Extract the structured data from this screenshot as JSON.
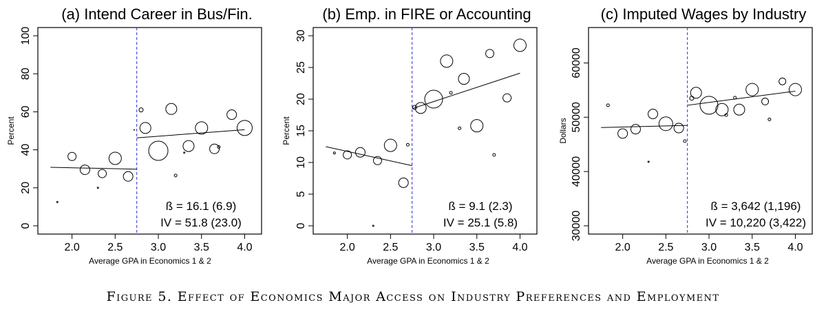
{
  "figure": {
    "caption": "Figure 5. Effect of Economics Major Access on Industry Preferences and Employment"
  },
  "chart_data": [
    {
      "type": "scatter",
      "title": "(a) Intend Career in Bus/Fin.",
      "xlabel": "Average GPA in Economics 1 & 2",
      "ylabel": "Percent",
      "xlim": [
        1.7,
        4.1
      ],
      "ylim": [
        0,
        100
      ],
      "xticks": [
        "2.0",
        "2.5",
        "3.0",
        "3.5",
        "4.0"
      ],
      "xtick_values": [
        2.0,
        2.5,
        3.0,
        3.5,
        4.0
      ],
      "yticks": [
        "0",
        "20",
        "40",
        "60",
        "80",
        "100"
      ],
      "ytick_values": [
        0,
        20,
        40,
        60,
        80,
        100
      ],
      "cutoff": 2.75,
      "points": [
        {
          "x": 1.83,
          "y": 12.5,
          "r": 1
        },
        {
          "x": 2.0,
          "y": 36.5,
          "r": 6
        },
        {
          "x": 2.15,
          "y": 29.5,
          "r": 7
        },
        {
          "x": 2.3,
          "y": 20,
          "r": 1
        },
        {
          "x": 2.35,
          "y": 27.5,
          "r": 6
        },
        {
          "x": 2.5,
          "y": 35.5,
          "r": 9
        },
        {
          "x": 2.65,
          "y": 26,
          "r": 7
        },
        {
          "x": 2.72,
          "y": 50.5,
          "r": 0.5
        },
        {
          "x": 2.8,
          "y": 61,
          "r": 3
        },
        {
          "x": 2.85,
          "y": 51.5,
          "r": 8
        },
        {
          "x": 3.0,
          "y": 39.5,
          "r": 14
        },
        {
          "x": 3.15,
          "y": 61.5,
          "r": 8
        },
        {
          "x": 3.2,
          "y": 26.5,
          "r": 2
        },
        {
          "x": 3.3,
          "y": 38.5,
          "r": 1
        },
        {
          "x": 3.35,
          "y": 42,
          "r": 8
        },
        {
          "x": 3.5,
          "y": 51.5,
          "r": 9
        },
        {
          "x": 3.65,
          "y": 40.5,
          "r": 7
        },
        {
          "x": 3.7,
          "y": 41.5,
          "r": 2
        },
        {
          "x": 3.85,
          "y": 58.5,
          "r": 7
        },
        {
          "x": 4.0,
          "y": 51.5,
          "r": 11
        }
      ],
      "fit_lines": [
        {
          "x": [
            1.75,
            2.75
          ],
          "y": [
            30.8,
            29.8
          ]
        },
        {
          "x": [
            2.75,
            4.0
          ],
          "y": [
            46.3,
            50.6
          ]
        }
      ],
      "annotations": [
        "ß = 16.1 (6.9)",
        "IV = 51.8 (23.0)"
      ]
    },
    {
      "type": "scatter",
      "title": "(b) Emp. in FIRE or Accounting",
      "xlabel": "Average GPA in Economics 1 & 2",
      "ylabel": "Percent",
      "xlim": [
        1.7,
        4.1
      ],
      "ylim": [
        0,
        30
      ],
      "xticks": [
        "2.0",
        "2.5",
        "3.0",
        "3.5",
        "4.0"
      ],
      "xtick_values": [
        2.0,
        2.5,
        3.0,
        3.5,
        4.0
      ],
      "yticks": [
        "0",
        "5",
        "10",
        "15",
        "20",
        "25",
        "30"
      ],
      "ytick_values": [
        0,
        5,
        10,
        15,
        20,
        25,
        30
      ],
      "cutoff": 2.75,
      "points": [
        {
          "x": 1.85,
          "y": 11.5,
          "r": 1.5
        },
        {
          "x": 2.0,
          "y": 11.2,
          "r": 6
        },
        {
          "x": 2.15,
          "y": 11.6,
          "r": 7
        },
        {
          "x": 2.3,
          "y": 0,
          "r": 1
        },
        {
          "x": 2.35,
          "y": 10.3,
          "r": 6
        },
        {
          "x": 2.5,
          "y": 12.7,
          "r": 9
        },
        {
          "x": 2.65,
          "y": 6.8,
          "r": 7
        },
        {
          "x": 2.7,
          "y": 12.8,
          "r": 2
        },
        {
          "x": 2.78,
          "y": 18.7,
          "r": 3
        },
        {
          "x": 2.85,
          "y": 18.6,
          "r": 8
        },
        {
          "x": 3.0,
          "y": 20,
          "r": 13
        },
        {
          "x": 3.15,
          "y": 26,
          "r": 9
        },
        {
          "x": 3.2,
          "y": 21,
          "r": 2
        },
        {
          "x": 3.3,
          "y": 15.4,
          "r": 2
        },
        {
          "x": 3.35,
          "y": 23.2,
          "r": 8
        },
        {
          "x": 3.5,
          "y": 15.8,
          "r": 9
        },
        {
          "x": 3.65,
          "y": 27.2,
          "r": 6
        },
        {
          "x": 3.7,
          "y": 11.2,
          "r": 2
        },
        {
          "x": 3.85,
          "y": 20.2,
          "r": 6
        },
        {
          "x": 4.0,
          "y": 28.5,
          "r": 9
        }
      ],
      "fit_lines": [
        {
          "x": [
            1.75,
            2.75
          ],
          "y": [
            12.5,
            9.5
          ]
        },
        {
          "x": [
            2.75,
            4.0
          ],
          "y": [
            18.5,
            24.1
          ]
        }
      ],
      "annotations": [
        "ß = 9.1 (2.3)",
        "IV = 25.1 (5.8)"
      ]
    },
    {
      "type": "scatter",
      "title": "(c) Imputed Wages by Industry",
      "xlabel": "Average GPA in Economics 1 & 2",
      "ylabel": "Dollars",
      "xlim": [
        1.7,
        4.1
      ],
      "ylim": [
        30000,
        65000
      ],
      "xticks": [
        "2.0",
        "2.5",
        "3.0",
        "3.5",
        "4.0"
      ],
      "xtick_values": [
        2.0,
        2.5,
        3.0,
        3.5,
        4.0
      ],
      "yticks": [
        "30000",
        "40000",
        "50000",
        "60000"
      ],
      "ytick_values": [
        30000,
        40000,
        50000,
        60000
      ],
      "cutoff": 2.75,
      "points": [
        {
          "x": 1.83,
          "y": 52200,
          "r": 2
        },
        {
          "x": 2.0,
          "y": 47000,
          "r": 7
        },
        {
          "x": 2.15,
          "y": 47800,
          "r": 7
        },
        {
          "x": 2.3,
          "y": 41800,
          "r": 1
        },
        {
          "x": 2.35,
          "y": 50600,
          "r": 7
        },
        {
          "x": 2.5,
          "y": 48800,
          "r": 10
        },
        {
          "x": 2.65,
          "y": 48000,
          "r": 7
        },
        {
          "x": 2.72,
          "y": 45600,
          "r": 2
        },
        {
          "x": 2.8,
          "y": 53500,
          "r": 3
        },
        {
          "x": 2.85,
          "y": 54500,
          "r": 8
        },
        {
          "x": 3.0,
          "y": 52200,
          "r": 13
        },
        {
          "x": 3.15,
          "y": 51400,
          "r": 9
        },
        {
          "x": 3.2,
          "y": 50400,
          "r": 2
        },
        {
          "x": 3.3,
          "y": 53600,
          "r": 2
        },
        {
          "x": 3.35,
          "y": 51400,
          "r": 8
        },
        {
          "x": 3.5,
          "y": 55100,
          "r": 9
        },
        {
          "x": 3.65,
          "y": 52900,
          "r": 5
        },
        {
          "x": 3.7,
          "y": 49600,
          "r": 2
        },
        {
          "x": 3.85,
          "y": 56600,
          "r": 5
        },
        {
          "x": 4.0,
          "y": 55100,
          "r": 9
        }
      ],
      "fit_lines": [
        {
          "x": [
            1.75,
            2.75
          ],
          "y": [
            48100,
            48500
          ]
        },
        {
          "x": [
            2.75,
            4.0
          ],
          "y": [
            52200,
            54800
          ]
        }
      ],
      "annotations": [
        "ß = 3,642 (1,196)",
        "IV = 10,220 (3,422)"
      ]
    }
  ]
}
